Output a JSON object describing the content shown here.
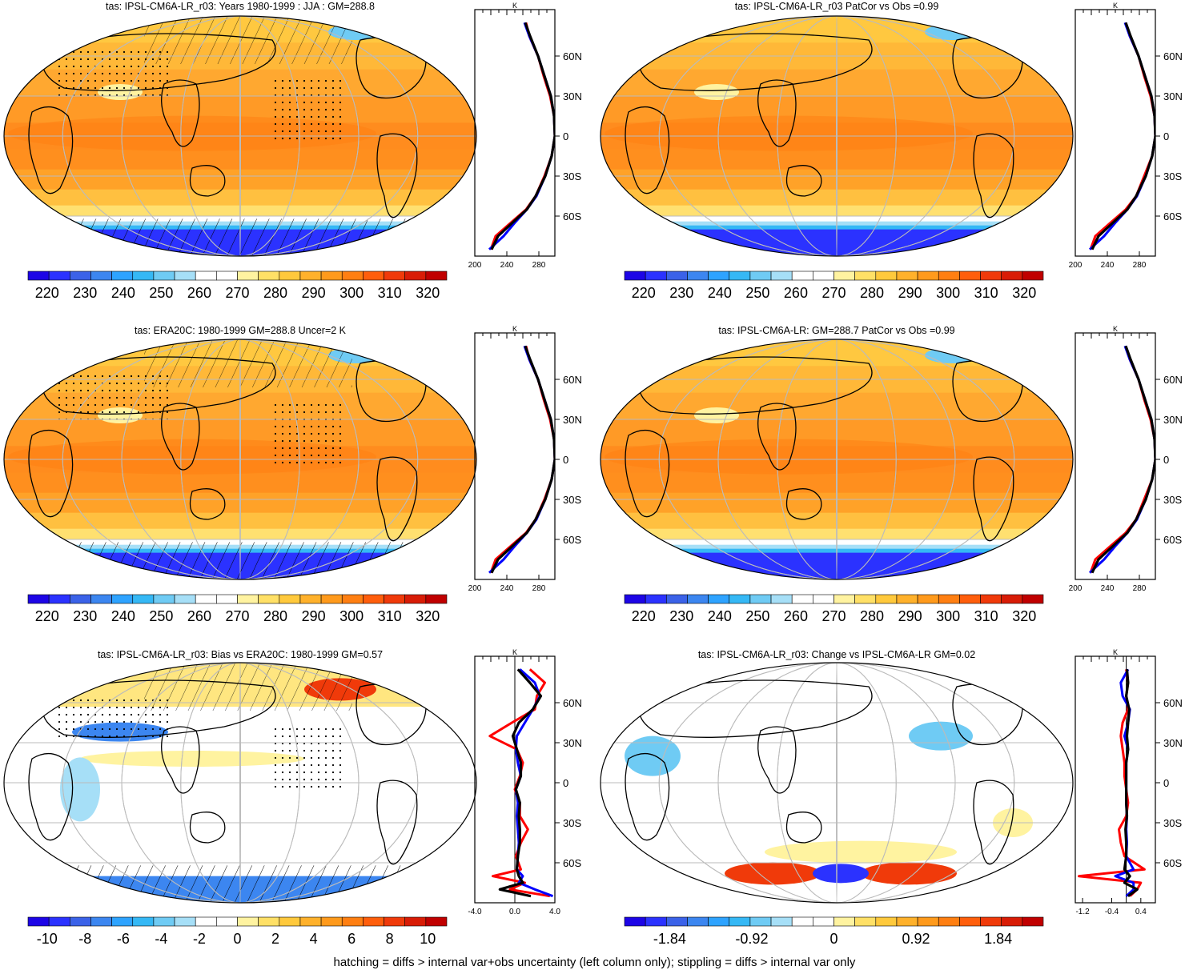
{
  "footnote": "hatching = diffs > internal var+obs uncertainty (left column only); stippling = diffs > internal var only",
  "palettes": {
    "abs": [
      "#1d05e6",
      "#2b32ff",
      "#3b62e8",
      "#3c86f0",
      "#2ea3ff",
      "#35b8f5",
      "#6fcbf4",
      "#a6dff7",
      "#ffffff",
      "#ffffff",
      "#fff3a0",
      "#ffe066",
      "#ffc93c",
      "#ffb12b",
      "#ff9a1c",
      "#ff7f12",
      "#ff5e0c",
      "#f03a0a",
      "#d81c06",
      "#c00000"
    ],
    "diff": [
      "#1d05e6",
      "#2b32ff",
      "#3b62e8",
      "#3c86f0",
      "#2ea3ff",
      "#35b8f5",
      "#6fcbf4",
      "#a6dff7",
      "#ffffff",
      "#ffffff",
      "#fff3a0",
      "#ffe066",
      "#ffc93c",
      "#ffb12b",
      "#ff9a1c",
      "#ff7f12",
      "#ff5e0c",
      "#f03a0a",
      "#d81c06",
      "#c00000"
    ]
  },
  "chart_data": [
    {
      "type": "heatmap",
      "title": "tas: IPSL-CM6A-LR_r03: Years 1980-1999 : JJA : GM=288.8",
      "colorbar_ticks": [
        "220",
        "230",
        "240",
        "250",
        "260",
        "270",
        "280",
        "290",
        "300",
        "310",
        "320"
      ],
      "colorbar_palette": "abs",
      "field": "absolute",
      "stippled": true,
      "hatched": true,
      "zonal_mean": {
        "xlabel": "K",
        "xlim": [
          200,
          300
        ],
        "x_ticks": [
          "200",
          "240",
          "280"
        ],
        "lat_ticks": [
          "60N",
          "30N",
          "0",
          "30S",
          "60S"
        ],
        "lat": [
          -85,
          -75,
          -65,
          -55,
          -45,
          -30,
          -15,
          0,
          15,
          30,
          45,
          60,
          75,
          85
        ],
        "series": [
          {
            "color": "#ff0000",
            "values": [
              220,
              226,
              245,
              264,
              276,
              287,
              296,
              300,
              299,
              294,
              286,
              279,
              268,
              264
            ]
          },
          {
            "color": "#0000ff",
            "values": [
              218,
              236,
              250,
              265,
              277,
              288,
              296,
              300,
              299,
              295,
              287,
              279,
              268,
              262
            ]
          },
          {
            "color": "#000000",
            "values": [
              221,
              229,
              247,
              265,
              276,
              288,
              296,
              300,
              299,
              295,
              287,
              279,
              269,
              263
            ]
          }
        ]
      }
    },
    {
      "type": "heatmap",
      "title": "tas: IPSL-CM6A-LR_r03 PatCor vs Obs =0.99",
      "colorbar_ticks": [
        "220",
        "230",
        "240",
        "250",
        "260",
        "270",
        "280",
        "290",
        "300",
        "310",
        "320"
      ],
      "colorbar_palette": "abs",
      "field": "absolute",
      "stippled": false,
      "hatched": false,
      "zonal_mean": {
        "xlabel": "K",
        "xlim": [
          200,
          300
        ],
        "x_ticks": [
          "200",
          "240",
          "280"
        ],
        "lat_ticks": [
          "60N",
          "30N",
          "0",
          "30S",
          "60S"
        ],
        "lat": [
          -85,
          -75,
          -65,
          -55,
          -45,
          -30,
          -15,
          0,
          15,
          30,
          45,
          60,
          75,
          85
        ],
        "series": [
          {
            "color": "#ff0000",
            "values": [
              219,
              225,
              244,
              263,
              276,
              286,
              296,
              300,
              299,
              294,
              286,
              279,
              268,
              263
            ]
          },
          {
            "color": "#0000ff",
            "values": [
              218,
              236,
              250,
              265,
              277,
              288,
              296,
              300,
              299,
              295,
              287,
              279,
              268,
              262
            ]
          },
          {
            "color": "#000000",
            "values": [
              221,
              229,
              247,
              265,
              276,
              288,
              296,
              300,
              299,
              295,
              287,
              279,
              269,
              263
            ]
          }
        ]
      }
    },
    {
      "type": "heatmap",
      "title": "tas: ERA20C: 1980-1999 GM=288.8 Uncer=2 K",
      "colorbar_ticks": [
        "220",
        "230",
        "240",
        "250",
        "260",
        "270",
        "280",
        "290",
        "300",
        "310",
        "320"
      ],
      "colorbar_palette": "abs",
      "field": "absolute",
      "stippled": true,
      "hatched": true,
      "zonal_mean": {
        "xlabel": "K",
        "xlim": [
          200,
          300
        ],
        "x_ticks": [
          "200",
          "240",
          "280"
        ],
        "lat_ticks": [
          "60N",
          "30N",
          "0",
          "30S",
          "60S"
        ],
        "lat": [
          -85,
          -75,
          -65,
          -55,
          -45,
          -30,
          -15,
          0,
          15,
          30,
          45,
          60,
          75,
          85
        ],
        "series": [
          {
            "color": "#ff0000",
            "values": [
              220,
              226,
              245,
              264,
              276,
              287,
              296,
              300,
              299,
              294,
              286,
              279,
              268,
              264
            ]
          },
          {
            "color": "#0000ff",
            "values": [
              218,
              236,
              250,
              265,
              277,
              288,
              296,
              300,
              299,
              295,
              287,
              279,
              268,
              262
            ]
          },
          {
            "color": "#000000",
            "values": [
              221,
              229,
              247,
              265,
              276,
              288,
              296,
              300,
              299,
              295,
              287,
              279,
              269,
              263
            ]
          }
        ]
      }
    },
    {
      "type": "heatmap",
      "title": "tas: IPSL-CM6A-LR: GM=288.7 PatCor vs Obs =0.99",
      "colorbar_ticks": [
        "220",
        "230",
        "240",
        "250",
        "260",
        "270",
        "280",
        "290",
        "300",
        "310",
        "320"
      ],
      "colorbar_palette": "abs",
      "field": "absolute",
      "stippled": false,
      "hatched": false,
      "zonal_mean": {
        "xlabel": "K",
        "xlim": [
          200,
          300
        ],
        "x_ticks": [
          "200",
          "240",
          "280"
        ],
        "lat_ticks": [
          "60N",
          "30N",
          "0",
          "30S",
          "60S"
        ],
        "lat": [
          -85,
          -75,
          -65,
          -55,
          -45,
          -30,
          -15,
          0,
          15,
          30,
          45,
          60,
          75,
          85
        ],
        "series": [
          {
            "color": "#ff0000",
            "values": [
              219,
              225,
              244,
              263,
              276,
              286,
              296,
              300,
              299,
              294,
              286,
              279,
              268,
              263
            ]
          },
          {
            "color": "#0000ff",
            "values": [
              218,
              236,
              250,
              265,
              277,
              288,
              296,
              300,
              299,
              295,
              287,
              279,
              268,
              262
            ]
          },
          {
            "color": "#000000",
            "values": [
              221,
              229,
              247,
              265,
              276,
              288,
              296,
              300,
              299,
              295,
              287,
              279,
              269,
              263
            ]
          }
        ]
      }
    },
    {
      "type": "heatmap",
      "title": "tas: IPSL-CM6A-LR_r03: Bias vs ERA20C: 1980-1999 GM=0.57",
      "colorbar_ticks": [
        "-10",
        "-8",
        "-6",
        "-4",
        "-2",
        "0",
        "2",
        "4",
        "6",
        "8",
        "10"
      ],
      "colorbar_palette": "diff",
      "field": "bias",
      "stippled": true,
      "hatched": true,
      "zonal_mean": {
        "xlabel": "K",
        "xlim": [
          -4,
          4
        ],
        "x_ticks": [
          "-4.0",
          "0.0",
          "4.0"
        ],
        "lat_ticks": [
          "60N",
          "30N",
          "0",
          "30S",
          "60S"
        ],
        "lat": [
          -85,
          -80,
          -75,
          -70,
          -65,
          -55,
          -45,
          -35,
          -25,
          -15,
          -5,
          5,
          15,
          25,
          35,
          45,
          55,
          65,
          75,
          85
        ],
        "series": [
          {
            "color": "#ff0000",
            "values": [
              3.5,
              -0.5,
              1.0,
              -2.2,
              0.6,
              0.1,
              0.6,
              1.3,
              0.5,
              0.5,
              0.0,
              0.5,
              0.8,
              0.2,
              -2.5,
              -0.3,
              2.0,
              2.2,
              3.0,
              1.5
            ]
          },
          {
            "color": "#0000ff",
            "values": [
              3.8,
              2.0,
              0.4,
              0.8,
              0.2,
              0.3,
              0.4,
              0.3,
              0.2,
              0.3,
              0.1,
              0.6,
              0.3,
              0.1,
              0.2,
              1.0,
              1.8,
              2.5,
              2.0,
              0.5
            ]
          },
          {
            "color": "#000000",
            "values": [
              1.6,
              -1.5,
              0.8,
              0.4,
              0.2,
              0.3,
              0.5,
              0.5,
              0.4,
              0.5,
              0.1,
              0.6,
              0.6,
              0.2,
              -0.2,
              0.4,
              1.8,
              2.6,
              1.5,
              0.3
            ]
          }
        ]
      }
    },
    {
      "type": "heatmap",
      "title": "tas: IPSL-CM6A-LR_r03: Change vs IPSL-CM6A-LR GM=0.02",
      "colorbar_ticks": [
        "-1.84",
        "-0.92",
        "0",
        "0.92",
        "1.84"
      ],
      "colorbar_palette": "diff",
      "field": "change",
      "stippled": false,
      "hatched": false,
      "zonal_mean": {
        "xlabel": "K",
        "xlim": [
          -1.4,
          0.8
        ],
        "x_ticks": [
          "-1.2",
          "-0.4",
          "0.4"
        ],
        "lat_ticks": [
          "60N",
          "30N",
          "0",
          "30S",
          "60S"
        ],
        "lat": [
          -85,
          -80,
          -75,
          -70,
          -65,
          -55,
          -45,
          -35,
          -25,
          -15,
          -5,
          5,
          15,
          25,
          35,
          45,
          55,
          65,
          75,
          85
        ],
        "series": [
          {
            "color": "#ff0000",
            "values": [
              0.1,
              0.3,
              0.4,
              -1.3,
              0.5,
              -0.05,
              -0.15,
              -0.2,
              0.0,
              0.05,
              0.0,
              -0.05,
              -0.05,
              -0.1,
              -0.15,
              -0.1,
              0.05,
              0.0,
              0.05,
              0.0
            ]
          },
          {
            "color": "#0000ff",
            "values": [
              0.0,
              0.2,
              0.2,
              -0.3,
              0.2,
              0.0,
              0.02,
              0.0,
              0.02,
              0.0,
              0.0,
              0.0,
              0.0,
              0.05,
              -0.05,
              0.05,
              0.1,
              -0.1,
              -0.15,
              0.05
            ]
          },
          {
            "color": "#000000",
            "values": [
              0.05,
              0.3,
              -0.05,
              0.1,
              -0.05,
              0.0,
              0.0,
              -0.02,
              0.02,
              0.0,
              0.0,
              0.0,
              0.0,
              0.05,
              0.02,
              0.05,
              0.08,
              0.0,
              0.05,
              0.02
            ]
          }
        ]
      }
    }
  ]
}
